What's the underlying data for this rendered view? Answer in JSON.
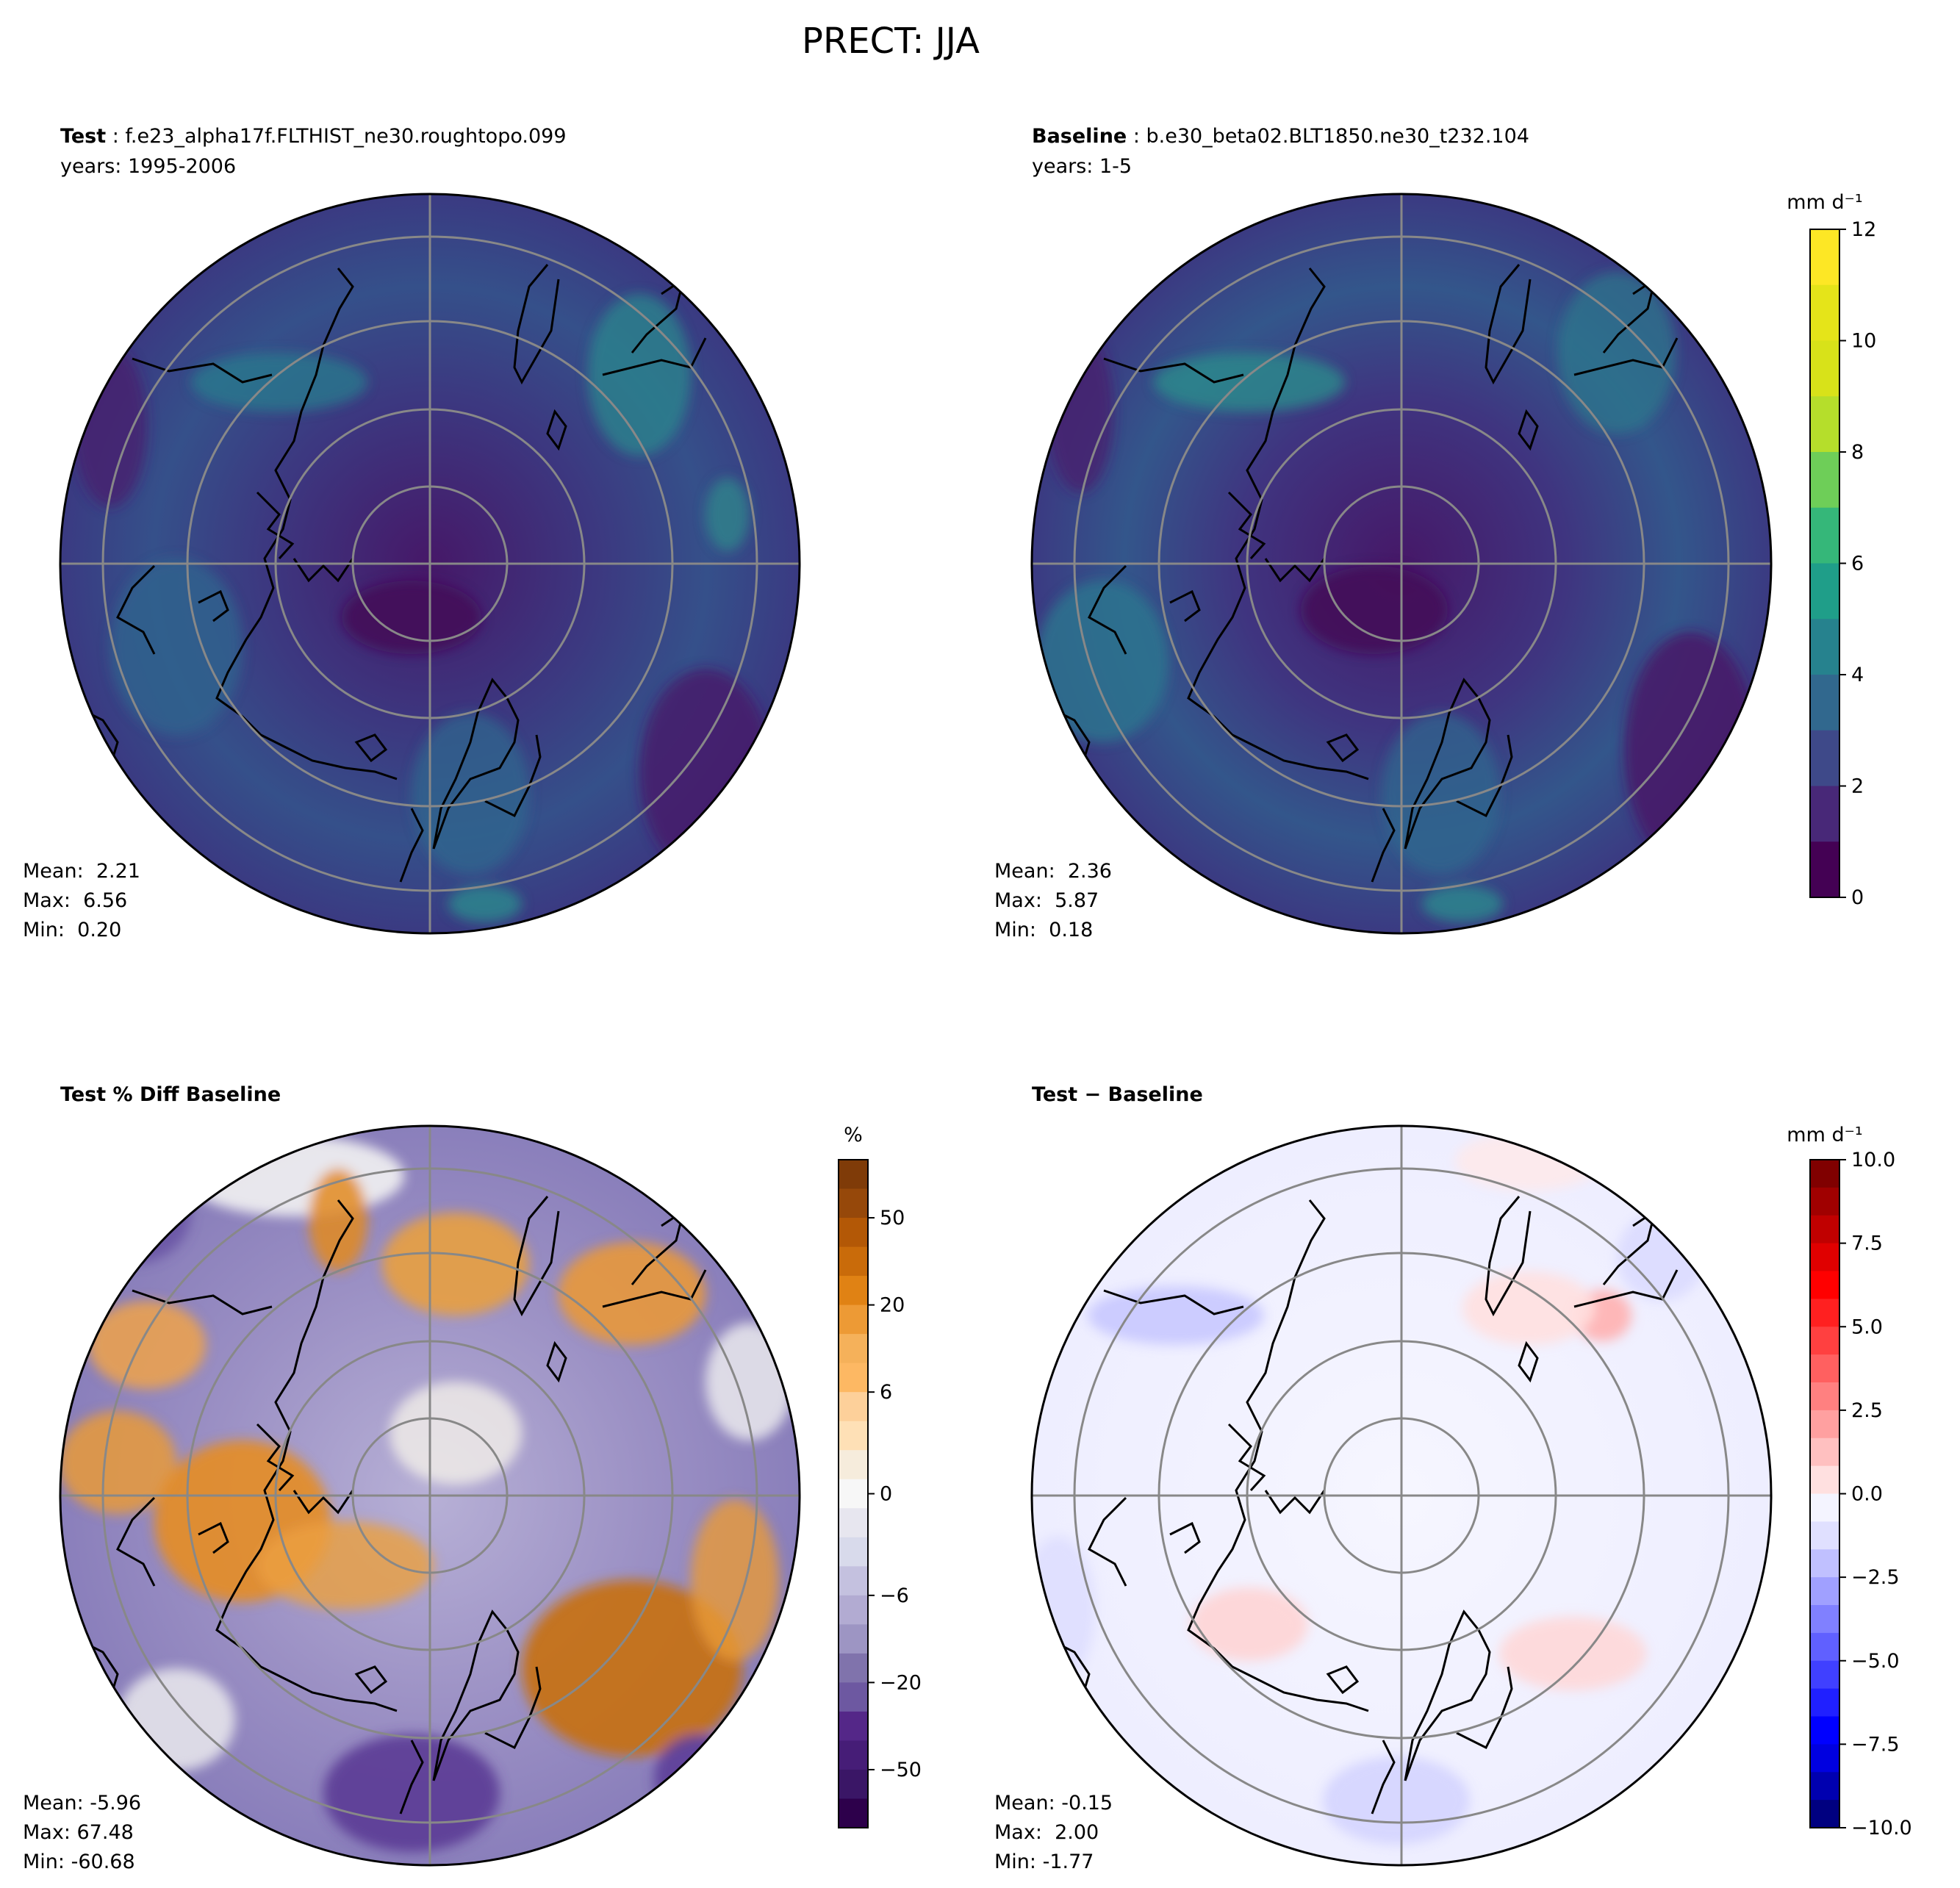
{
  "figure_title": "PRECT: JJA",
  "panels": {
    "test": {
      "label_bold": "Test",
      "label_rest": " : f.e23_alpha17f.FLTHIST_ne30.roughtopo.099",
      "years": "years: 1995-2006",
      "stats": [
        "Mean:  2.21",
        "Max:  6.56",
        "Min:  0.20"
      ]
    },
    "baseline": {
      "label_bold": "Baseline",
      "label_rest": " : b.e30_beta02.BLT1850.ne30_t232.104",
      "years": "years: 1-5",
      "stats": [
        "Mean:  2.36",
        "Max:  5.87",
        "Min:  0.18"
      ]
    },
    "pctdiff": {
      "label_bold": "Test % Diff Baseline",
      "stats": [
        "Mean: -5.96",
        "Max: 67.48",
        "Min: -60.68"
      ]
    },
    "diff": {
      "label_bold": "Test − Baseline",
      "stats": [
        "Mean: -0.15",
        "Max:  2.00",
        "Min: -1.77"
      ]
    }
  },
  "chart_data": [
    {
      "type": "heatmap",
      "panel": "Test",
      "projection": "north polar stereographic",
      "case": "f.e23_alpha17f.FLTHIST_ne30.roughtopo.099",
      "years": "1995-2006",
      "mean": 2.21,
      "max": 6.56,
      "min": 0.2,
      "colorbar": "shared_precip"
    },
    {
      "type": "heatmap",
      "panel": "Baseline",
      "projection": "north polar stereographic",
      "case": "b.e30_beta02.BLT1850.ne30_t232.104",
      "years": "1-5",
      "mean": 2.36,
      "max": 5.87,
      "min": 0.18,
      "colorbar": "shared_precip"
    },
    {
      "type": "heatmap",
      "panel": "Test % Diff Baseline",
      "projection": "north polar stereographic",
      "mean": -5.96,
      "max": 67.48,
      "min": -60.68,
      "colorbar": "pct"
    },
    {
      "type": "heatmap",
      "panel": "Test - Baseline",
      "projection": "north polar stereographic",
      "mean": -0.15,
      "max": 2.0,
      "min": -1.77,
      "colorbar": "diff"
    }
  ],
  "colorbars": {
    "shared_precip": {
      "unit_label": "mm d⁻¹",
      "range": [
        0,
        12
      ],
      "levels": [
        0,
        1,
        2,
        3,
        4,
        5,
        6,
        7,
        8,
        9,
        10,
        11,
        12
      ],
      "colors": [
        "#440154",
        "#482878",
        "#3e4989",
        "#31688e",
        "#26828e",
        "#1f9e89",
        "#35b779",
        "#6ece58",
        "#b5de2b",
        "#d8e219",
        "#e5e419",
        "#fde725"
      ],
      "tick_labels": [
        "0",
        "2",
        "4",
        "6",
        "8",
        "10",
        "12"
      ]
    },
    "pct": {
      "unit_label": "%",
      "levels_display": 23,
      "tick_labels": [
        "50",
        "20",
        "6",
        "0",
        "−6",
        "−20",
        "−50"
      ],
      "colors": [
        "#7f3b08",
        "#96480a",
        "#b35806",
        "#c96b0a",
        "#e08214",
        "#ed9a35",
        "#f5b15a",
        "#fdb863",
        "#fdd09a",
        "#fee0b6",
        "#f6ecdc",
        "#f7f7f7",
        "#e7e6ef",
        "#d8daeb",
        "#c4c1df",
        "#b2abd2",
        "#9d95c3",
        "#8073ac",
        "#6d58a1",
        "#542788",
        "#461d77",
        "#3a1666",
        "#2d004b"
      ]
    },
    "diff": {
      "unit_label": "mm d⁻¹",
      "range": [
        -10,
        10
      ],
      "tick_labels": [
        "10.0",
        "7.5",
        "5.0",
        "2.5",
        "0.0",
        "−2.5",
        "−5.0",
        "−7.5",
        "−10.0"
      ],
      "colors": [
        "#800000",
        "#a00000",
        "#c00000",
        "#e00000",
        "#ff0000",
        "#ff2020",
        "#ff4040",
        "#ff6060",
        "#ff8080",
        "#ffa0a0",
        "#ffc0c0",
        "#ffe0e0",
        "#f4f4ff",
        "#e0e0ff",
        "#c0c0ff",
        "#a0a0ff",
        "#8080ff",
        "#6060ff",
        "#4040ff",
        "#2020ff",
        "#0000ff",
        "#0000e0",
        "#0000b0",
        "#000080"
      ]
    }
  }
}
